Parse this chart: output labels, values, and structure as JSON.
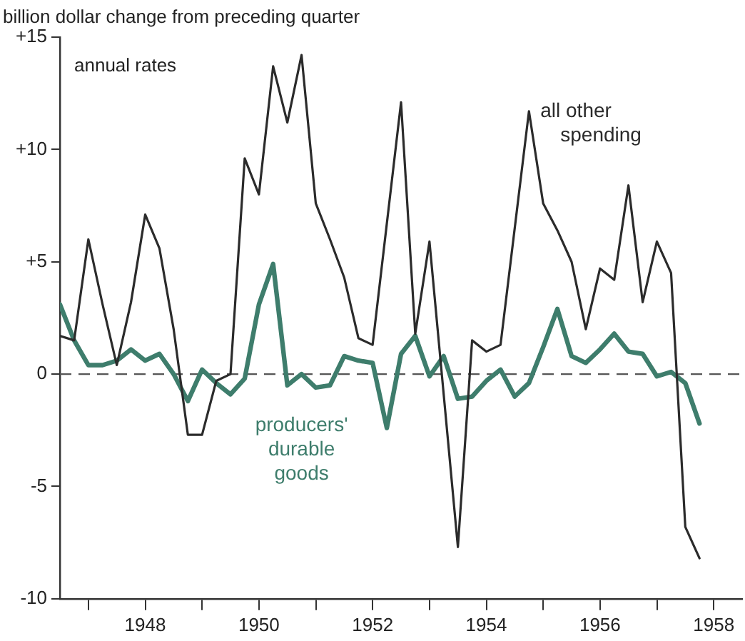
{
  "chart_data": {
    "type": "line",
    "ylabel": "billion dollar change from preceding quarter",
    "annotations": [
      "annual rates"
    ],
    "x": [
      1946.5,
      1946.75,
      1947,
      1947.25,
      1947.5,
      1947.75,
      1948,
      1948.25,
      1948.5,
      1948.75,
      1949,
      1949.25,
      1949.5,
      1949.75,
      1950,
      1950.25,
      1950.5,
      1950.75,
      1951,
      1951.25,
      1951.5,
      1951.75,
      1952,
      1952.25,
      1952.5,
      1952.75,
      1953,
      1953.25,
      1953.5,
      1953.75,
      1954,
      1954.25,
      1954.5,
      1954.75,
      1955,
      1955.25,
      1955.5,
      1955.75,
      1956,
      1956.25,
      1956.5,
      1956.75,
      1957,
      1957.25,
      1957.5,
      1957.75
    ],
    "series": [
      {
        "name": "all other spending",
        "color": "#2b2b2b",
        "values": [
          1.7,
          1.5,
          6.0,
          3.1,
          0.4,
          3.2,
          7.1,
          5.6,
          2.0,
          -2.7,
          -2.7,
          -0.3,
          0.0,
          9.6,
          8.0,
          13.7,
          11.2,
          14.2,
          7.6,
          6.0,
          4.3,
          1.6,
          1.3,
          6.7,
          12.1,
          1.8,
          5.9,
          -0.9,
          -7.7,
          1.5,
          1.0,
          1.3,
          6.5,
          11.7,
          7.6,
          6.4,
          5.0,
          2.0,
          4.7,
          4.2,
          8.4,
          3.2,
          5.9,
          4.5,
          -6.8,
          -8.2
        ]
      },
      {
        "name": "producers' durable goods",
        "color": "#3e7d6c",
        "values": [
          3.1,
          1.5,
          0.4,
          0.4,
          0.6,
          1.1,
          0.6,
          0.9,
          0.0,
          -1.2,
          0.2,
          -0.4,
          -0.9,
          -0.2,
          3.1,
          4.9,
          -0.5,
          0.0,
          -0.6,
          -0.5,
          0.8,
          0.6,
          0.5,
          -2.4,
          0.9,
          1.7,
          -0.1,
          0.8,
          -1.1,
          -1.0,
          -0.3,
          0.2,
          -1.0,
          -0.4,
          1.2,
          2.9,
          0.8,
          0.5,
          1.1,
          1.8,
          1.0,
          0.9,
          -0.1,
          0.1,
          -0.4,
          -2.2
        ]
      }
    ],
    "xlim": [
      1946.5,
      1958.5
    ],
    "xticks": [
      {
        "value": 1947,
        "label": null
      },
      {
        "value": 1948,
        "label": "1948"
      },
      {
        "value": 1949,
        "label": null
      },
      {
        "value": 1950,
        "label": "1950"
      },
      {
        "value": 1951,
        "label": null
      },
      {
        "value": 1952,
        "label": "1952"
      },
      {
        "value": 1953,
        "label": null
      },
      {
        "value": 1954,
        "label": "1954"
      },
      {
        "value": 1955,
        "label": null
      },
      {
        "value": 1956,
        "label": "1956"
      },
      {
        "value": 1957,
        "label": null
      },
      {
        "value": 1958,
        "label": "1958"
      }
    ],
    "ylim": [
      -10,
      15
    ],
    "yticks": [
      {
        "value": -10,
        "label": "-10"
      },
      {
        "value": -5,
        "label": "-5"
      },
      0,
      {
        "value": 5,
        "label": "+5"
      },
      {
        "value": 10,
        "label": "+10"
      },
      {
        "value": 15,
        "label": "+15"
      }
    ],
    "ref_lines": [
      {
        "axis": "y",
        "value": 0,
        "color": "#555555",
        "line_style": "dashed"
      }
    ],
    "grid": false,
    "legend": false,
    "marker": "none",
    "line_style": "solid"
  }
}
